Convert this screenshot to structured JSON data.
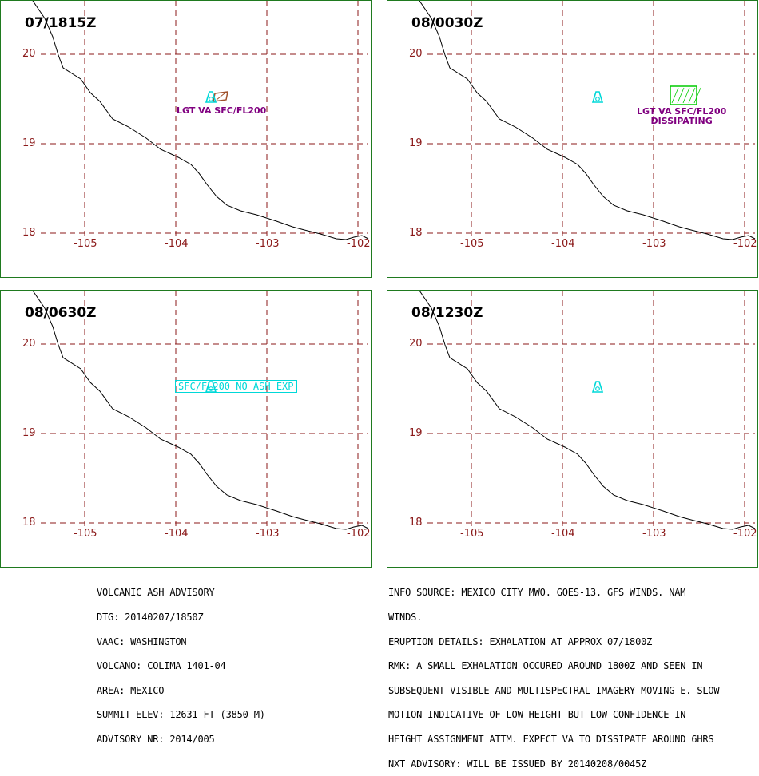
{
  "colors": {
    "border": "#1f7a1f",
    "grid": "#8b1a1a",
    "coast": "#000000",
    "volcano": "#00d8d8",
    "ash_label": "#800080",
    "obs_area": "#a0522d",
    "fcst_area": "#00cc00"
  },
  "panels": [
    {
      "time": "07/1815Z",
      "lat_labels": [
        "20",
        "19",
        "18"
      ],
      "lon_labels": [
        "-105",
        "-104",
        "-103",
        "-102"
      ],
      "label_lines": [
        "LGT VA SFC/FL200"
      ],
      "area": "observed"
    },
    {
      "time": "08/0030Z",
      "lat_labels": [
        "20",
        "19",
        "18"
      ],
      "lon_labels": [
        "-105",
        "-104",
        "-103",
        "-102"
      ],
      "label_lines": [
        "LGT VA SFC/FL200",
        "DISSIPATING"
      ],
      "area": "forecast"
    },
    {
      "time": "08/0630Z",
      "lat_labels": [
        "20",
        "19",
        "18"
      ],
      "lon_labels": [
        "-105",
        "-104",
        "-103",
        "-102"
      ],
      "label_lines": [
        "SFC/FL200 NO ASH EXP"
      ],
      "area": "none"
    },
    {
      "time": "08/1230Z",
      "lat_labels": [
        "20",
        "19",
        "18"
      ],
      "lon_labels": [
        "-105",
        "-104",
        "-103",
        "-102"
      ],
      "label_lines": [],
      "area": "none"
    }
  ],
  "advisory_left": [
    "VOLCANIC ASH ADVISORY",
    "DTG: 20140207/1850Z",
    "VAAC: WASHINGTON",
    "VOLCANO: COLIMA 1401-04",
    "AREA: MEXICO",
    "SUMMIT ELEV: 12631 FT (3850 M)",
    "ADVISORY NR: 2014/005"
  ],
  "advisory_right": [
    "INFO SOURCE: MEXICO CITY MWO. GOES-13. GFS WINDS. NAM",
    "WINDS.",
    "ERUPTION DETAILS: EXHALATION AT APPROX 07/1800Z",
    "RMK: A SMALL EXHALATION OCCURED AROUND 1800Z AND SEEN IN",
    "SUBSEQUENT VISIBLE AND MULTISPECTRAL IMAGERY MOVING E. SLOW",
    "MOTION INDICATIVE OF LOW HEIGHT BUT LOW CONFIDENCE IN",
    "HEIGHT ASSIGNMENT ATTM. EXPECT VA TO DISSIPATE AROUND 6HRS",
    "NXT ADVISORY: WILL BE ISSUED BY 20140208/0045Z"
  ]
}
